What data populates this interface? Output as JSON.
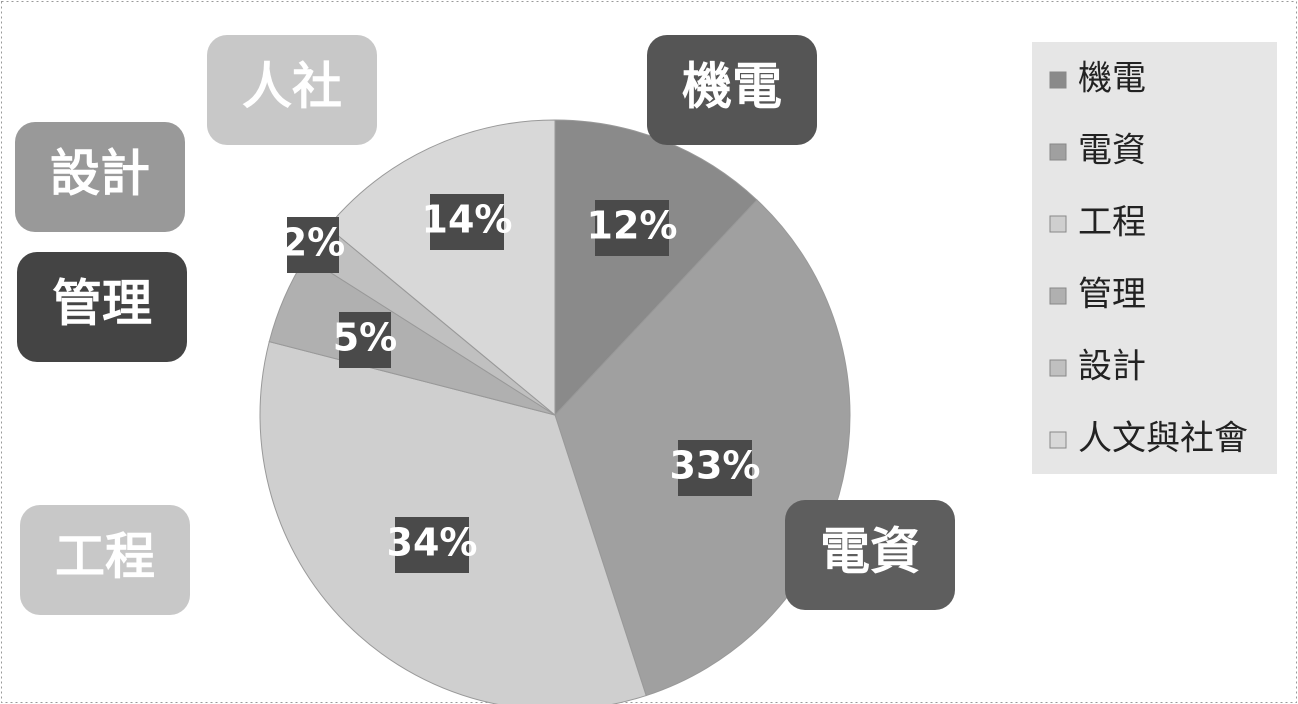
{
  "chart_data": {
    "type": "pie",
    "categories": [
      "機電",
      "電資",
      "工程",
      "管理",
      "設計",
      "人文與社會"
    ],
    "callout_labels": [
      "機電",
      "電資",
      "工程",
      "管理",
      "設計",
      "人社"
    ],
    "values": [
      12,
      33,
      34,
      5,
      2,
      14
    ],
    "value_labels": [
      "12%",
      "33%",
      "34%",
      "5%",
      "2%",
      "14%"
    ],
    "colors": [
      "#8a8a8a",
      "#a0a0a0",
      "#cfcfcf",
      "#b0b0b0",
      "#c0c0c0",
      "#d8d8d8"
    ],
    "callout_colors": [
      "#555555",
      "#5e5e5e",
      "#c8c8c8",
      "#444444",
      "#999999",
      "#c8c8c8"
    ],
    "legend": "right"
  }
}
